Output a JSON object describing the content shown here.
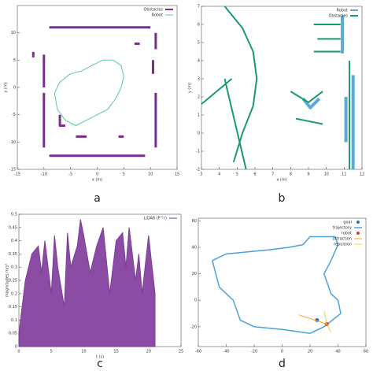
{
  "chart_data": [
    {
      "type": "line",
      "panel_label": "a",
      "xlabel": "x (m)",
      "ylabel": "y (m)",
      "xlim": [
        -15,
        15
      ],
      "ylim": [
        -15,
        15
      ],
      "xticks": [
        -15,
        -10,
        -5,
        0,
        5,
        10,
        15
      ],
      "yticks": [
        -15,
        -10,
        -5,
        0,
        5,
        10
      ],
      "legend": "upper right",
      "series": [
        {
          "name": "Obstacles",
          "type": "line",
          "color": "#7b2d8e",
          "line_width": 3,
          "x": [
            -9,
            10,
            null,
            -10,
            -10,
            null,
            -10,
            -10,
            null,
            -9,
            9,
            null,
            11,
            11,
            null,
            10.5,
            10.5,
            null,
            11,
            11,
            null,
            -12,
            -12,
            null,
            -7,
            -7,
            -6,
            null,
            7,
            8,
            null,
            -4,
            -2,
            null,
            4,
            5
          ],
          "y": [
            11,
            11,
            null,
            6,
            0,
            null,
            -1,
            -11,
            null,
            -12.5,
            -12.5,
            null,
            10,
            7,
            null,
            5,
            2.5,
            null,
            -1,
            -11,
            null,
            6.5,
            5.5,
            null,
            -5,
            -7,
            -7,
            null,
            8,
            8,
            null,
            -9,
            -9,
            null,
            -9,
            -9
          ]
        },
        {
          "name": "Robot",
          "type": "line",
          "color": "#5fc8a0",
          "line_width": 1,
          "x": [
            -8,
            -7,
            -5,
            -3,
            -1,
            1,
            3,
            4.5,
            5,
            4.5,
            3.5,
            2,
            0,
            -2,
            -4,
            -6,
            -7.5,
            -8
          ],
          "y": [
            -1,
            1,
            2.5,
            3,
            4,
            5,
            5,
            4,
            2,
            0,
            -2,
            -4,
            -5,
            -6,
            -7,
            -6,
            -4,
            -1
          ]
        }
      ]
    },
    {
      "type": "line",
      "panel_label": "b",
      "xlabel": "x (m)",
      "ylabel": "y (m)",
      "xlim": [
        3,
        12
      ],
      "ylim": [
        -2,
        7
      ],
      "xticks": [
        3,
        4,
        5,
        6,
        7,
        8,
        9,
        10,
        11,
        12
      ],
      "yticks": [
        -2,
        -1,
        0,
        1,
        2,
        3,
        4,
        5,
        6,
        7
      ],
      "legend": "upper right",
      "series": [
        {
          "name": "Robot",
          "type": "line",
          "color": "#5aa9d6",
          "line_width": 4,
          "x": [
            10.9,
            10.9,
            null,
            11.5,
            11.5,
            null,
            8.7,
            9.1,
            9.6,
            null,
            11.1,
            11.1
          ],
          "y": [
            6.5,
            4.4,
            null,
            3.2,
            -2,
            null,
            1.9,
            1.4,
            1.9,
            null,
            2,
            -0.5
          ]
        },
        {
          "name": "Obstacles",
          "type": "line",
          "color": "#1a9a6c",
          "line_width": 2,
          "x": [
            4.3,
            5.3,
            5.9,
            6.1,
            5.9,
            5.3,
            4.8,
            null,
            3,
            4.7,
            null,
            4.3,
            5.5,
            null,
            9.3,
            10.8,
            null,
            9.5,
            10.8,
            null,
            9.3,
            10.8,
            null,
            8,
            9,
            9.8,
            null,
            8.3,
            9.8,
            null,
            11.3,
            11.3
          ],
          "y": [
            7,
            5.8,
            4.5,
            3,
            1.5,
            0,
            -1.6,
            null,
            1.6,
            3,
            null,
            3,
            -2,
            null,
            6,
            6,
            null,
            5.2,
            5.2,
            null,
            4.5,
            4.5,
            null,
            2.3,
            1.7,
            2.3,
            null,
            0.8,
            0.5,
            null,
            4,
            -2
          ]
        }
      ]
    },
    {
      "type": "area",
      "panel_label": "c",
      "xlabel": "t (s)",
      "ylabel": "magnitudes m/s²",
      "xlim": [
        0,
        25
      ],
      "ylim": [
        0,
        0.5
      ],
      "xticks": [
        0,
        5,
        10,
        15,
        20,
        25
      ],
      "yticks": [
        0,
        0.05,
        0.1,
        0.15,
        0.2,
        0.25,
        0.3,
        0.35,
        0.4,
        0.45,
        0.5
      ],
      "legend": "upper right",
      "series": [
        {
          "name": "LiDAR (F^r)",
          "type": "area",
          "color": "#7e3a9a",
          "line_width": 1,
          "x": [
            0,
            1,
            2,
            3,
            3.5,
            4,
            5,
            5.5,
            6,
            7,
            7.5,
            8,
            9,
            9.5,
            10,
            11,
            12,
            13,
            14,
            15,
            16,
            16.5,
            17,
            18,
            18.5,
            19,
            20,
            21
          ],
          "y": [
            0.05,
            0.25,
            0.35,
            0.38,
            0.28,
            0.4,
            0.2,
            0.42,
            0.3,
            0.15,
            0.43,
            0.3,
            0.38,
            0.48,
            0.42,
            0.28,
            0.38,
            0.45,
            0.2,
            0.4,
            0.43,
            0.3,
            0.45,
            0.25,
            0.35,
            0.2,
            0.42,
            0.2
          ]
        }
      ]
    },
    {
      "type": "line",
      "panel_label": "d",
      "xlim": [
        -60,
        60
      ],
      "ylim": [
        -35,
        62
      ],
      "xticks": [
        -60,
        -40,
        -20,
        0,
        20,
        40,
        60
      ],
      "yticks": [
        -20,
        0,
        20,
        40,
        60
      ],
      "legend": "upper right",
      "series": [
        {
          "name": "goal",
          "type": "scatter",
          "color": "#2f6fb5",
          "x": [
            25
          ],
          "y": [
            -15
          ]
        },
        {
          "name": "trajectory",
          "type": "line",
          "color": "#4aa3d8",
          "line_width": 1.5,
          "x": [
            -50,
            -40,
            -10,
            5,
            15,
            20,
            38,
            40,
            35,
            30,
            35,
            40,
            42,
            30,
            20,
            0,
            -20,
            -30,
            -35,
            -45,
            -50
          ],
          "y": [
            30,
            35,
            38,
            40,
            42,
            48,
            48,
            42,
            30,
            20,
            5,
            0,
            -10,
            -20,
            -25,
            -22,
            -20,
            -15,
            0,
            10,
            30
          ]
        },
        {
          "name": "robot",
          "type": "scatter",
          "color": "#e03a2e",
          "x": [
            32
          ],
          "y": [
            -18
          ]
        },
        {
          "name": "attraction",
          "type": "line",
          "color": "#f5a623",
          "line_width": 1,
          "x": [
            32,
            12
          ],
          "y": [
            -18,
            -11
          ]
        },
        {
          "name": "repulsion",
          "type": "line",
          "color": "#f2d43b",
          "line_width": 1,
          "x": [
            32,
            30,
            null,
            32,
            35
          ],
          "y": [
            -18,
            -8,
            null,
            -18,
            -24
          ]
        }
      ]
    }
  ]
}
